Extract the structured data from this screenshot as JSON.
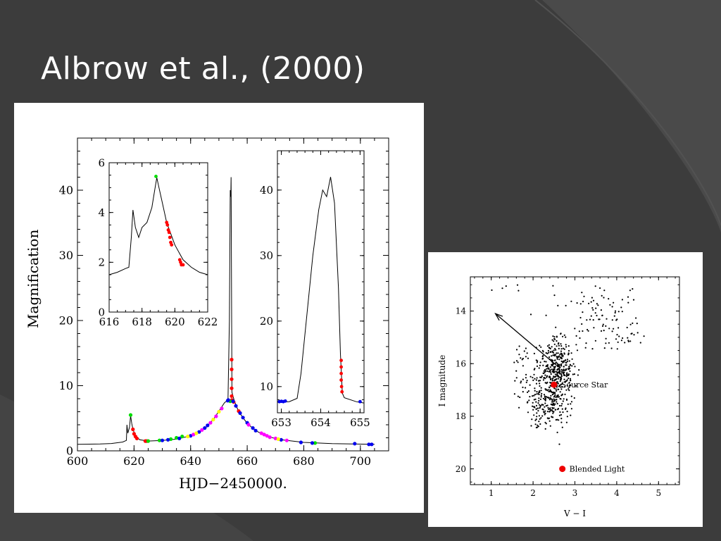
{
  "slide": {
    "title": "Albrow et al., (2000)"
  },
  "chart_data": [
    {
      "type": "line",
      "xlabel": "HJD−2450000.",
      "ylabel": "Magnification",
      "xlim": [
        600,
        710
      ],
      "ylim": [
        0,
        48
      ],
      "xticks": [
        600,
        620,
        640,
        660,
        680,
        700
      ],
      "yticks": [
        0,
        10,
        20,
        30,
        40
      ],
      "model_curve": [
        [
          600,
          1.0
        ],
        [
          608,
          1.05
        ],
        [
          612,
          1.12
        ],
        [
          616,
          1.35
        ],
        [
          617.3,
          1.6
        ],
        [
          617.5,
          4.0
        ],
        [
          617.8,
          2.7
        ],
        [
          618.4,
          3.6
        ],
        [
          618.8,
          5.4
        ],
        [
          619.2,
          4.2
        ],
        [
          619.6,
          3.3
        ],
        [
          620.5,
          2.3
        ],
        [
          622,
          1.7
        ],
        [
          625,
          1.5
        ],
        [
          630,
          1.6
        ],
        [
          635,
          1.8
        ],
        [
          640,
          2.3
        ],
        [
          645,
          3.4
        ],
        [
          648,
          4.8
        ],
        [
          650,
          6.1
        ],
        [
          652,
          7.4
        ],
        [
          653.2,
          7.8
        ],
        [
          653.7,
          20
        ],
        [
          654.0,
          40
        ],
        [
          654.2,
          39
        ],
        [
          654.3,
          42
        ],
        [
          654.5,
          20
        ],
        [
          654.6,
          9
        ],
        [
          655.5,
          7.6
        ],
        [
          657,
          6
        ],
        [
          660,
          4.2
        ],
        [
          663,
          3.1
        ],
        [
          667,
          2.2
        ],
        [
          672,
          1.7
        ],
        [
          680,
          1.3
        ],
        [
          690,
          1.1
        ],
        [
          705,
          1.0
        ]
      ],
      "series": [
        {
          "color": "#ff0000",
          "points": [
            [
              619.6,
              3.3
            ],
            [
              620.0,
              2.6
            ],
            [
              620.5,
              2.2
            ],
            [
              621.0,
              1.9
            ],
            [
              624,
              1.5
            ],
            [
              624.5,
              1.5
            ],
            [
              654.5,
              14
            ],
            [
              654.5,
              12.5
            ],
            [
              654.5,
              11
            ],
            [
              654.5,
              9.6
            ],
            [
              654.5,
              8.4
            ],
            [
              654.6,
              7.8
            ],
            [
              655.2,
              7.5
            ],
            [
              657,
              6.1
            ]
          ]
        },
        {
          "color": "#00dd00",
          "points": [
            [
              618.8,
              5.5
            ],
            [
              625,
              1.5
            ],
            [
              629,
              1.6
            ],
            [
              633,
              1.8
            ],
            [
              635,
              2.0
            ],
            [
              637,
              2.2
            ],
            [
              654,
              7.6
            ],
            [
              684,
              1.2
            ]
          ]
        },
        {
          "color": "#0000ee",
          "points": [
            [
              630,
              1.6
            ],
            [
              632,
              1.7
            ],
            [
              636,
              1.9
            ],
            [
              640,
              2.3
            ],
            [
              643,
              2.9
            ],
            [
              645,
              3.5
            ],
            [
              646,
              3.9
            ],
            [
              653.1,
              7.7
            ],
            [
              653.3,
              7.8
            ],
            [
              655,
              7.6
            ],
            [
              656,
              6.9
            ],
            [
              657.5,
              5.8
            ],
            [
              658.5,
              5.1
            ],
            [
              660,
              4.3
            ],
            [
              662,
              3.5
            ],
            [
              663,
              3.1
            ],
            [
              672,
              1.7
            ],
            [
              679,
              1.3
            ],
            [
              683,
              1.2
            ],
            [
              698,
              1.1
            ],
            [
              703,
              1.0
            ],
            [
              704,
              1.0
            ]
          ]
        },
        {
          "color": "#ff00ff",
          "points": [
            [
              641,
              2.5
            ],
            [
              644,
              3.2
            ],
            [
              647,
              4.3
            ],
            [
              649,
              5.3
            ],
            [
              651,
              6.5
            ],
            [
              660.5,
              4.0
            ],
            [
              665,
              2.7
            ],
            [
              666,
              2.5
            ],
            [
              667,
              2.3
            ],
            [
              668,
              2.1
            ],
            [
              670,
              1.9
            ],
            [
              674,
              1.6
            ]
          ]
        },
        {
          "color": "#ffff00",
          "points": [
            [
              639,
              2.2
            ],
            [
              642,
              2.7
            ],
            [
              648,
              4.8
            ],
            [
              650,
              6.0
            ],
            [
              671,
              1.8
            ]
          ]
        }
      ]
    },
    {
      "type": "line",
      "role": "inset-left",
      "xlim": [
        616,
        622
      ],
      "ylim": [
        0,
        6
      ],
      "xticks": [
        616,
        618,
        620,
        622
      ],
      "yticks": [
        0,
        2,
        4,
        6
      ],
      "model_curve": [
        [
          616,
          1.5
        ],
        [
          616.5,
          1.6
        ],
        [
          617,
          1.75
        ],
        [
          617.2,
          1.8
        ],
        [
          617.35,
          3.0
        ],
        [
          617.45,
          4.1
        ],
        [
          617.6,
          3.4
        ],
        [
          617.8,
          3.0
        ],
        [
          618.0,
          3.4
        ],
        [
          618.3,
          3.6
        ],
        [
          618.6,
          4.2
        ],
        [
          618.8,
          5.0
        ],
        [
          618.9,
          5.4
        ],
        [
          619.0,
          5.1
        ],
        [
          619.2,
          4.5
        ],
        [
          619.5,
          3.6
        ],
        [
          620.0,
          2.7
        ],
        [
          620.5,
          2.1
        ],
        [
          621.0,
          1.8
        ],
        [
          621.5,
          1.6
        ],
        [
          622,
          1.5
        ]
      ],
      "series": [
        {
          "color": "#ff0000",
          "points": [
            [
              619.5,
              3.6
            ],
            [
              619.55,
              3.5
            ],
            [
              619.6,
              3.3
            ],
            [
              619.65,
              3.2
            ],
            [
              619.7,
              3.0
            ],
            [
              619.75,
              2.8
            ],
            [
              619.8,
              2.7
            ],
            [
              620.3,
              2.1
            ],
            [
              620.35,
              2.0
            ],
            [
              620.4,
              1.9
            ],
            [
              620.5,
              1.9
            ]
          ]
        },
        {
          "color": "#00dd00",
          "points": [
            [
              618.85,
              5.45
            ]
          ]
        }
      ]
    },
    {
      "type": "line",
      "role": "inset-right",
      "xlim": [
        652.9,
        655.1
      ],
      "ylim": [
        6,
        46
      ],
      "xticks": [
        653,
        654,
        655
      ],
      "yticks": [
        10,
        20,
        30,
        40
      ],
      "model_curve": [
        [
          652.9,
          7.6
        ],
        [
          653.2,
          7.7
        ],
        [
          653.4,
          8.2
        ],
        [
          653.5,
          12
        ],
        [
          653.6,
          18
        ],
        [
          653.8,
          30
        ],
        [
          653.95,
          37
        ],
        [
          654.05,
          40
        ],
        [
          654.15,
          39
        ],
        [
          654.25,
          42
        ],
        [
          654.35,
          38
        ],
        [
          654.45,
          25
        ],
        [
          654.5,
          15
        ],
        [
          654.55,
          9
        ],
        [
          654.6,
          8.3
        ],
        [
          654.9,
          7.7
        ],
        [
          655.1,
          7.5
        ]
      ],
      "series": [
        {
          "color": "#0000ee",
          "points": [
            [
              652.95,
              7.7
            ],
            [
              653.0,
              7.75
            ],
            [
              653.05,
              7.7
            ],
            [
              653.1,
              7.8
            ],
            [
              655.0,
              7.7
            ]
          ]
        },
        {
          "color": "#ff0000",
          "points": [
            [
              654.52,
              14
            ],
            [
              654.52,
              13
            ],
            [
              654.52,
              12
            ],
            [
              654.52,
              11
            ],
            [
              654.53,
              10
            ],
            [
              654.54,
              9.2
            ]
          ]
        }
      ]
    },
    {
      "type": "scatter",
      "xlabel": "V − I",
      "ylabel": "I magnitude",
      "xlim": [
        0.5,
        5.5
      ],
      "ylim": [
        20.6,
        12.7
      ],
      "xticks": [
        1,
        2,
        3,
        4,
        5
      ],
      "yticks": [
        14,
        16,
        18,
        20
      ],
      "annotations": [
        {
          "text": "Source Star",
          "x": 2.5,
          "y": 16.8,
          "color": "#ee0000"
        },
        {
          "text": "Blended Light",
          "x": 2.7,
          "y": 20.0,
          "color": "#ee0000"
        }
      ],
      "arrow": {
        "from": [
          2.55,
          16.05
        ],
        "to": [
          1.1,
          14.1
        ]
      }
    }
  ]
}
